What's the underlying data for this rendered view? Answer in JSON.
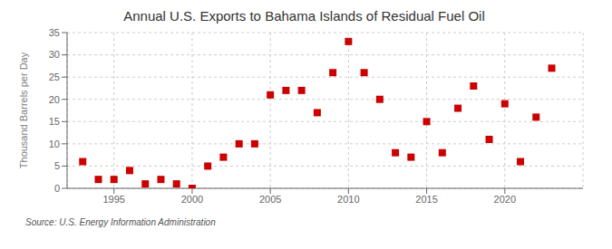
{
  "chart_data": {
    "type": "scatter",
    "title": "Annual U.S. Exports to Bahama Islands of Residual Fuel Oil",
    "ylabel": "Thousand Barrels per Day",
    "source": "Source: U.S. Energy Information Administration",
    "x": [
      1993,
      1994,
      1995,
      1996,
      1997,
      1998,
      1999,
      2000,
      2001,
      2002,
      2003,
      2004,
      2005,
      2006,
      2007,
      2008,
      2009,
      2010,
      2011,
      2012,
      2013,
      2014,
      2015,
      2016,
      2017,
      2018,
      2019,
      2020,
      2021,
      2022,
      2023
    ],
    "values": [
      6,
      2,
      2,
      4,
      1,
      2,
      1,
      0,
      5,
      7,
      10,
      10,
      21,
      22,
      22,
      17,
      26,
      33,
      26,
      20,
      8,
      7,
      15,
      8,
      18,
      23,
      11,
      19,
      6,
      16,
      27
    ],
    "xlim": [
      1992,
      2025
    ],
    "ylim": [
      0,
      35
    ],
    "xticks": [
      1995,
      2000,
      2005,
      2010,
      2015,
      2020
    ],
    "yticks": [
      0,
      5,
      10,
      15,
      20,
      25,
      30,
      35
    ],
    "grid": true,
    "color": "#cc0000",
    "marker": "square"
  }
}
